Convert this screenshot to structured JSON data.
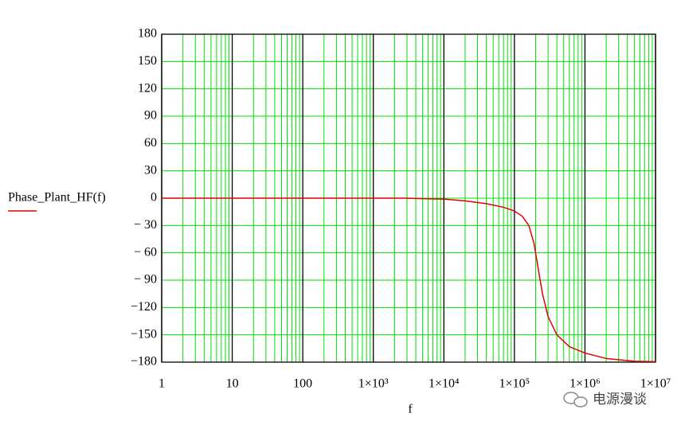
{
  "chart_data": {
    "type": "line",
    "legend_label": "Phase_Plant_HF(f)",
    "x_label": "f",
    "watermark": "电源漫谈",
    "x": [
      1,
      10,
      100,
      1000,
      3000,
      5000,
      10000,
      20000,
      40000,
      70000,
      100000,
      130000,
      160000,
      190000,
      220000,
      250000,
      300000,
      400000,
      600000,
      1000000,
      2000000,
      5000000,
      10000000
    ],
    "series": [
      {
        "name": "Phase_Plant_HF(f)",
        "color": "#e00000",
        "values": [
          0,
          0,
          0,
          0,
          0,
          -0.5,
          -1,
          -3,
          -6,
          -10,
          -14,
          -20,
          -30,
          -50,
          -80,
          -105,
          -130,
          -150,
          -163,
          -170,
          -176,
          -179,
          -179.5
        ]
      }
    ],
    "xscale": "log",
    "xlim": [
      1,
      10000000
    ],
    "xticks": [
      1,
      10,
      100,
      {
        "value": 1000,
        "label": "1×10³"
      },
      {
        "value": 10000,
        "label": "1×10⁴"
      },
      {
        "value": 100000,
        "label": "1×10⁵"
      },
      {
        "value": 1000000,
        "label": "1×10⁶"
      },
      {
        "value": 10000000,
        "label": "1×10⁷"
      }
    ],
    "ylim": [
      -180,
      180
    ],
    "yticks": [
      180,
      150,
      120,
      90,
      60,
      30,
      0,
      {
        "value": -30,
        "label": "− 30"
      },
      {
        "value": -60,
        "label": "− 60"
      },
      {
        "value": -90,
        "label": "− 90"
      },
      {
        "value": -120,
        "label": "−120"
      },
      {
        "value": -150,
        "label": "−150"
      },
      {
        "value": -180,
        "label": "−180"
      }
    ],
    "grid": true,
    "grid_color": "#00e000",
    "decade_line_color": "#000000"
  }
}
